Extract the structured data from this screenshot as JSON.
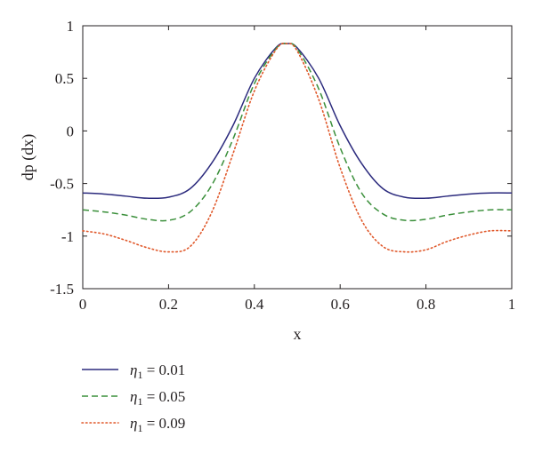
{
  "chart_data": {
    "type": "line",
    "title": "",
    "xlabel": "x",
    "ylabel": "dp (dx)",
    "xlim": [
      0,
      1
    ],
    "ylim": [
      -1.5,
      1
    ],
    "xticks": [
      0,
      0.2,
      0.4,
      0.6,
      0.8,
      1
    ],
    "xtick_labels": [
      "0",
      "0.2",
      "0.4",
      "0.6",
      "0.8",
      "1"
    ],
    "yticks": [
      -1.5,
      -1,
      -0.5,
      0,
      0.5,
      1
    ],
    "ytick_labels": [
      "-1.5",
      "-1",
      "-0.5",
      "0",
      "0.5",
      "1"
    ],
    "grid": false,
    "legend_position": "below",
    "x": [
      0,
      0.05,
      0.1,
      0.15,
      0.2,
      0.25,
      0.3,
      0.35,
      0.4,
      0.45,
      0.475,
      0.5,
      0.55,
      0.6,
      0.65,
      0.7,
      0.75,
      0.8,
      0.85,
      0.9,
      0.95,
      1
    ],
    "series": [
      {
        "name": "η",
        "sub": "1",
        "value_text": " = 0.01",
        "color": "#2b2a7d",
        "dash": "solid",
        "values": [
          -0.59,
          -0.6,
          -0.62,
          -0.64,
          -0.63,
          -0.55,
          -0.31,
          0.05,
          0.5,
          0.79,
          0.83,
          0.79,
          0.5,
          0.05,
          -0.31,
          -0.55,
          -0.63,
          -0.64,
          -0.62,
          -0.6,
          -0.59,
          -0.59
        ]
      },
      {
        "name": "η",
        "sub": "1",
        "value_text": " = 0.05",
        "color": "#3a8f3a",
        "dash": "dashed",
        "values": [
          -0.75,
          -0.77,
          -0.8,
          -0.84,
          -0.85,
          -0.77,
          -0.52,
          -0.08,
          0.45,
          0.78,
          0.83,
          0.78,
          0.4,
          -0.16,
          -0.59,
          -0.79,
          -0.85,
          -0.84,
          -0.8,
          -0.77,
          -0.75,
          -0.75
        ]
      },
      {
        "name": "η",
        "sub": "1",
        "value_text": " = 0.09",
        "color": "#e0582a",
        "dash": "dotted",
        "values": [
          -0.95,
          -0.98,
          -1.04,
          -1.11,
          -1.15,
          -1.1,
          -0.78,
          -0.22,
          0.38,
          0.77,
          0.83,
          0.76,
          0.3,
          -0.35,
          -0.85,
          -1.1,
          -1.15,
          -1.13,
          -1.05,
          -0.99,
          -0.95,
          -0.95
        ]
      }
    ]
  }
}
